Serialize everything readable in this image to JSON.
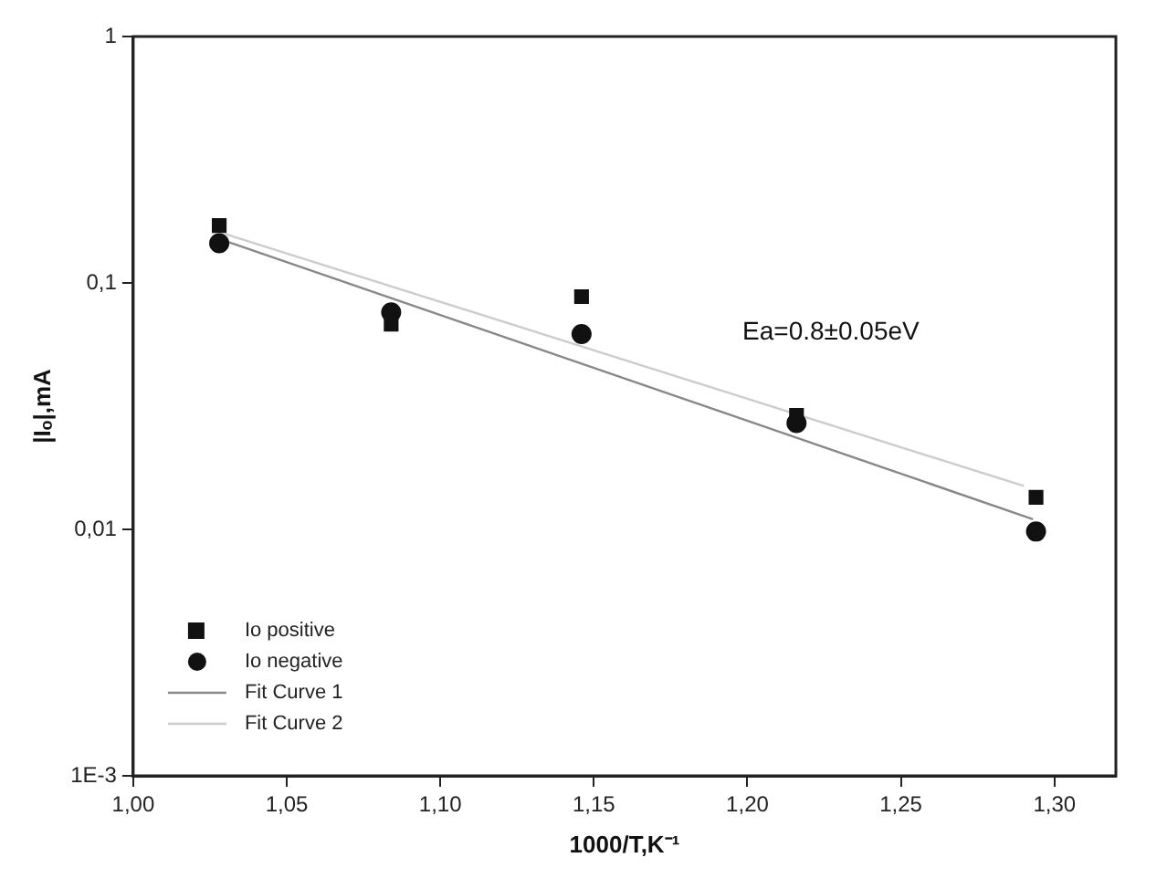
{
  "chart_data": {
    "type": "scatter",
    "xlabel": "1000/T,K⁻¹",
    "ylabel": "|Iₒ|,mA",
    "log": "y",
    "grid": false,
    "legend": "bottom left",
    "xlim": [
      1.0,
      1.32
    ],
    "xticks": [
      {
        "value": 1.0,
        "label": "1,00"
      },
      {
        "value": 1.05,
        "label": "1,05"
      },
      {
        "value": 1.1,
        "label": "1,10"
      },
      {
        "value": 1.15,
        "label": "1,15"
      },
      {
        "value": 1.2,
        "label": "1,20"
      },
      {
        "value": 1.25,
        "label": "1,25"
      },
      {
        "value": 1.3,
        "label": "1,30"
      }
    ],
    "ylim": [
      0.001,
      1
    ],
    "yticks": [
      {
        "value": 0.001,
        "label": "1E-3"
      },
      {
        "value": 0.01,
        "label": "0,01"
      },
      {
        "value": 0.1,
        "label": "0,1"
      },
      {
        "value": 1,
        "label": "1"
      }
    ],
    "x": [
      1.028,
      1.084,
      1.146,
      1.216,
      1.294
    ],
    "series": [
      {
        "name": "Io positive",
        "type": "scatter",
        "marker": "square",
        "color": "#111111",
        "values": [
          0.171,
          0.068,
          0.088,
          0.029,
          0.0135
        ]
      },
      {
        "name": "Io negative",
        "type": "scatter",
        "marker": "circle",
        "color": "#111111",
        "values": [
          0.145,
          0.076,
          0.062,
          0.027,
          0.0098
        ]
      },
      {
        "name": "Fit Curve 1",
        "type": "line",
        "marker": "none",
        "line_style": "solid",
        "color": "#888888",
        "x": [
          1.03,
          1.293
        ],
        "values": [
          0.148,
          0.011
        ]
      },
      {
        "name": "Fit Curve 2",
        "type": "line",
        "marker": "none",
        "line_style": "solid",
        "color": "#cccccc",
        "x": [
          1.03,
          1.29
        ],
        "values": [
          0.158,
          0.015
        ]
      }
    ],
    "annotations": [
      "Ea=0.8±0.05eV"
    ]
  }
}
